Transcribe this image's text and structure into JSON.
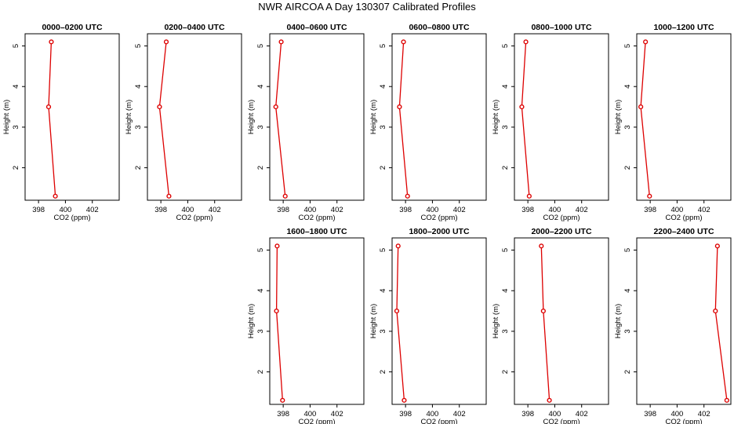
{
  "title": "NWR AIRCOA A  Day 130307  Calibrated Profiles",
  "colors": {
    "line": "#dd0000",
    "axis": "#000000",
    "background": "#ffffff"
  },
  "chart_data": [
    {
      "type": "line",
      "title": "0000–0200 UTC",
      "xlabel": "CO2 (ppm)",
      "ylabel": "Height (m)",
      "xlim": [
        397,
        404
      ],
      "ylim": [
        1.2,
        5.3
      ],
      "xticks": [
        {
          "v": 398,
          "label": "398"
        },
        {
          "v": 400,
          "label": "400"
        },
        {
          "v": 402,
          "label": "402"
        }
      ],
      "yticks": [
        {
          "v": 2,
          "label": "2"
        },
        {
          "v": 3,
          "label": "3"
        },
        {
          "v": 4,
          "label": "4"
        },
        {
          "v": 5,
          "label": "5"
        }
      ],
      "points": [
        {
          "x": 398.95,
          "y": 5.1
        },
        {
          "x": 398.75,
          "y": 3.5
        },
        {
          "x": 399.25,
          "y": 1.3
        }
      ]
    },
    {
      "type": "line",
      "title": "0200–0400 UTC",
      "xlabel": "CO2 (ppm)",
      "ylabel": "Height (m)",
      "xlim": [
        397,
        404
      ],
      "ylim": [
        1.2,
        5.3
      ],
      "xticks": [
        {
          "v": 398,
          "label": "398"
        },
        {
          "v": 400,
          "label": "400"
        },
        {
          "v": 402,
          "label": "402"
        }
      ],
      "yticks": [
        {
          "v": 2,
          "label": "2"
        },
        {
          "v": 3,
          "label": "3"
        },
        {
          "v": 4,
          "label": "4"
        },
        {
          "v": 5,
          "label": "5"
        }
      ],
      "points": [
        {
          "x": 398.4,
          "y": 5.1
        },
        {
          "x": 397.9,
          "y": 3.5
        },
        {
          "x": 398.6,
          "y": 1.3
        }
      ]
    },
    {
      "type": "line",
      "title": "0400–0600 UTC",
      "xlabel": "CO2 (ppm)",
      "ylabel": "Height (m)",
      "xlim": [
        397,
        404
      ],
      "ylim": [
        1.2,
        5.3
      ],
      "xticks": [
        {
          "v": 398,
          "label": "398"
        },
        {
          "v": 400,
          "label": "400"
        },
        {
          "v": 402,
          "label": "402"
        }
      ],
      "yticks": [
        {
          "v": 2,
          "label": "2"
        },
        {
          "v": 3,
          "label": "3"
        },
        {
          "v": 4,
          "label": "4"
        },
        {
          "v": 5,
          "label": "5"
        }
      ],
      "points": [
        {
          "x": 397.85,
          "y": 5.1
        },
        {
          "x": 397.45,
          "y": 3.5
        },
        {
          "x": 398.15,
          "y": 1.3
        }
      ]
    },
    {
      "type": "line",
      "title": "0600–0800 UTC",
      "xlabel": "CO2 (ppm)",
      "ylabel": "Height (m)",
      "xlim": [
        397,
        404
      ],
      "ylim": [
        1.2,
        5.3
      ],
      "xticks": [
        {
          "v": 398,
          "label": "398"
        },
        {
          "v": 400,
          "label": "400"
        },
        {
          "v": 402,
          "label": "402"
        }
      ],
      "yticks": [
        {
          "v": 2,
          "label": "2"
        },
        {
          "v": 3,
          "label": "3"
        },
        {
          "v": 4,
          "label": "4"
        },
        {
          "v": 5,
          "label": "5"
        }
      ],
      "points": [
        {
          "x": 397.85,
          "y": 5.1
        },
        {
          "x": 397.55,
          "y": 3.5
        },
        {
          "x": 398.15,
          "y": 1.3
        }
      ]
    },
    {
      "type": "line",
      "title": "0800–1000 UTC",
      "xlabel": "CO2 (ppm)",
      "ylabel": "Height (m)",
      "xlim": [
        397,
        404
      ],
      "ylim": [
        1.2,
        5.3
      ],
      "xticks": [
        {
          "v": 398,
          "label": "398"
        },
        {
          "v": 400,
          "label": "400"
        },
        {
          "v": 402,
          "label": "402"
        }
      ],
      "yticks": [
        {
          "v": 2,
          "label": "2"
        },
        {
          "v": 3,
          "label": "3"
        },
        {
          "v": 4,
          "label": "4"
        },
        {
          "v": 5,
          "label": "5"
        }
      ],
      "points": [
        {
          "x": 397.85,
          "y": 5.1
        },
        {
          "x": 397.55,
          "y": 3.5
        },
        {
          "x": 398.1,
          "y": 1.3
        }
      ]
    },
    {
      "type": "line",
      "title": "1000–1200 UTC",
      "xlabel": "CO2 (ppm)",
      "ylabel": "Height (m)",
      "xlim": [
        397,
        404
      ],
      "ylim": [
        1.2,
        5.3
      ],
      "xticks": [
        {
          "v": 398,
          "label": "398"
        },
        {
          "v": 400,
          "label": "400"
        },
        {
          "v": 402,
          "label": "402"
        }
      ],
      "yticks": [
        {
          "v": 2,
          "label": "2"
        },
        {
          "v": 3,
          "label": "3"
        },
        {
          "v": 4,
          "label": "4"
        },
        {
          "v": 5,
          "label": "5"
        }
      ],
      "points": [
        {
          "x": 397.65,
          "y": 5.1
        },
        {
          "x": 397.3,
          "y": 3.5
        },
        {
          "x": 397.95,
          "y": 1.3
        }
      ]
    },
    {
      "type": "line",
      "title": "1600–1800 UTC",
      "xlabel": "CO2 (ppm)",
      "ylabel": "Height (m)",
      "xlim": [
        397,
        404
      ],
      "ylim": [
        1.2,
        5.3
      ],
      "xticks": [
        {
          "v": 398,
          "label": "398"
        },
        {
          "v": 400,
          "label": "400"
        },
        {
          "v": 402,
          "label": "402"
        }
      ],
      "yticks": [
        {
          "v": 2,
          "label": "2"
        },
        {
          "v": 3,
          "label": "3"
        },
        {
          "v": 4,
          "label": "4"
        },
        {
          "v": 5,
          "label": "5"
        }
      ],
      "points": [
        {
          "x": 397.55,
          "y": 5.1
        },
        {
          "x": 397.5,
          "y": 3.5
        },
        {
          "x": 397.95,
          "y": 1.3
        }
      ]
    },
    {
      "type": "line",
      "title": "1800–2000 UTC",
      "xlabel": "CO2 (ppm)",
      "ylabel": "Height (m)",
      "xlim": [
        397,
        404
      ],
      "ylim": [
        1.2,
        5.3
      ],
      "xticks": [
        {
          "v": 398,
          "label": "398"
        },
        {
          "v": 400,
          "label": "400"
        },
        {
          "v": 402,
          "label": "402"
        }
      ],
      "yticks": [
        {
          "v": 2,
          "label": "2"
        },
        {
          "v": 3,
          "label": "3"
        },
        {
          "v": 4,
          "label": "4"
        },
        {
          "v": 5,
          "label": "5"
        }
      ],
      "points": [
        {
          "x": 397.45,
          "y": 5.1
        },
        {
          "x": 397.35,
          "y": 3.5
        },
        {
          "x": 397.9,
          "y": 1.3
        }
      ]
    },
    {
      "type": "line",
      "title": "2000–2200 UTC",
      "xlabel": "CO2 (ppm)",
      "ylabel": "Height (m)",
      "xlim": [
        397,
        404
      ],
      "ylim": [
        1.2,
        5.3
      ],
      "xticks": [
        {
          "v": 398,
          "label": "398"
        },
        {
          "v": 400,
          "label": "400"
        },
        {
          "v": 402,
          "label": "402"
        }
      ],
      "yticks": [
        {
          "v": 2,
          "label": "2"
        },
        {
          "v": 3,
          "label": "3"
        },
        {
          "v": 4,
          "label": "4"
        },
        {
          "v": 5,
          "label": "5"
        }
      ],
      "points": [
        {
          "x": 399.0,
          "y": 5.1
        },
        {
          "x": 399.15,
          "y": 3.5
        },
        {
          "x": 399.6,
          "y": 1.3
        }
      ]
    },
    {
      "type": "line",
      "title": "2200–2400 UTC",
      "xlabel": "CO2 (ppm)",
      "ylabel": "Height (m)",
      "xlim": [
        397,
        404
      ],
      "ylim": [
        1.2,
        5.3
      ],
      "xticks": [
        {
          "v": 398,
          "label": "398"
        },
        {
          "v": 400,
          "label": "400"
        },
        {
          "v": 402,
          "label": "402"
        }
      ],
      "yticks": [
        {
          "v": 2,
          "label": "2"
        },
        {
          "v": 3,
          "label": "3"
        },
        {
          "v": 4,
          "label": "4"
        },
        {
          "v": 5,
          "label": "5"
        }
      ],
      "points": [
        {
          "x": 403.0,
          "y": 5.1
        },
        {
          "x": 402.85,
          "y": 3.5
        },
        {
          "x": 403.7,
          "y": 1.3
        }
      ]
    }
  ]
}
